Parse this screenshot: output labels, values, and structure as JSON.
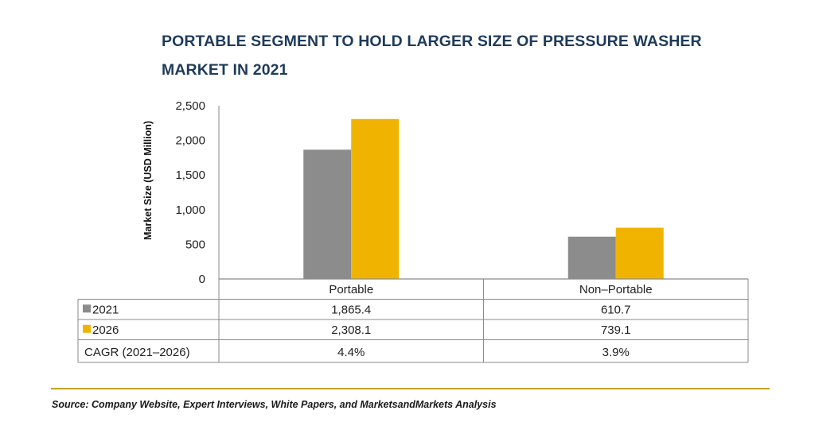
{
  "chart_data": {
    "type": "bar",
    "title": "PORTABLE SEGMENT TO HOLD LARGER SIZE OF PRESSURE WASHER MARKET IN 2021",
    "ylabel": "Market Size (USD Million)",
    "ylim": [
      0,
      2500
    ],
    "yticks": [
      "0",
      "500",
      "1,000",
      "1,500",
      "2,000",
      "2,500"
    ],
    "categories": [
      "Portable",
      "Non–Portable"
    ],
    "series": [
      {
        "name": "2021",
        "values": [
          1865.4,
          610.7
        ],
        "color": "#8c8c8c",
        "labels": [
          "1,865.4",
          "610.7"
        ]
      },
      {
        "name": "2026",
        "values": [
          2308.1,
          739.1
        ],
        "color": "#f0b400",
        "labels": [
          "2,308.1",
          "739.1"
        ]
      }
    ],
    "cagr": {
      "label": "CAGR (2021–2026)",
      "values": [
        "4.4%",
        "3.9%"
      ]
    },
    "grid": false,
    "legend": "table"
  },
  "source": "Source: Company Website, Expert Interviews, White Papers, and MarketsandMarkets Analysis"
}
